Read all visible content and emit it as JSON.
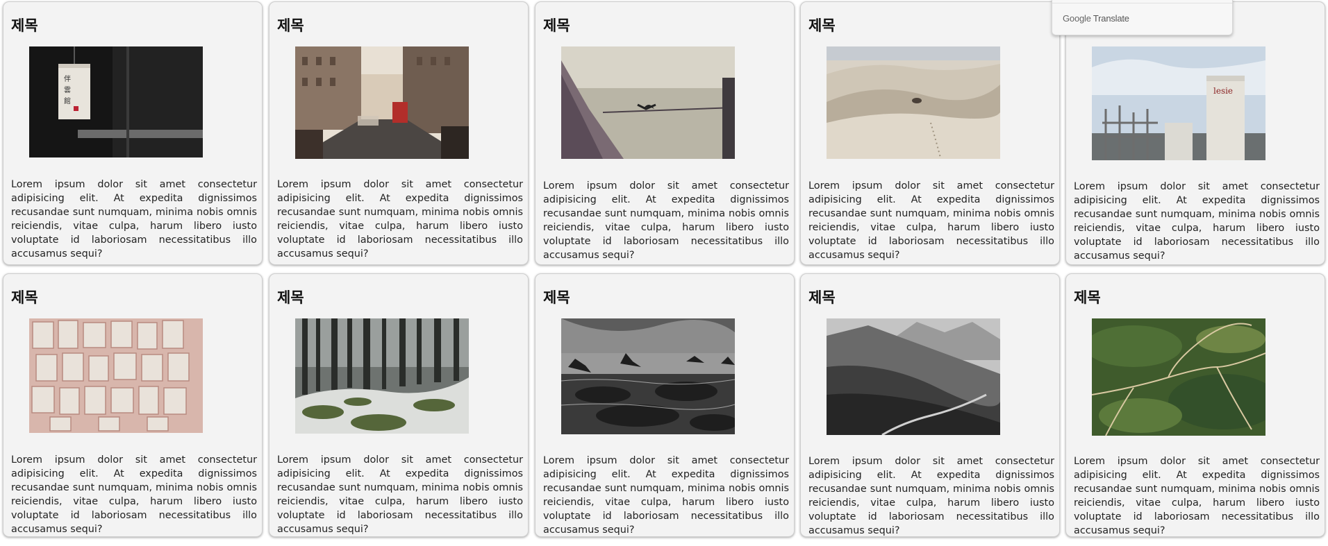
{
  "cards": [
    {
      "title": "제목",
      "image": "paper-lantern-photo",
      "text": "Lorem ipsum dolor sit amet consectetur adipisicing elit. At expedita dignissimos recusandae sunt numquam, minima nobis omnis reiciendis, vitae culpa, harum libero iusto voluptate id laboriosam necessitatibus illo accusamus sequi?"
    },
    {
      "title": "제목",
      "image": "city-street-photo",
      "text": "Lorem ipsum dolor sit amet consectetur adipisicing elit. At expedita dignissimos recusandae sunt numquam, minima nobis omnis reiciendis, vitae culpa, harum libero iusto voluptate id laboriosam necessitatibus illo accusamus sequi?"
    },
    {
      "title": "제목",
      "image": "boat-bird-photo",
      "text": "Lorem ipsum dolor sit amet consectetur adipisicing elit. At expedita dignissimos recusandae sunt numquam, minima nobis omnis reiciendis, vitae culpa, harum libero iusto voluptate id laboriosam necessitatibus illo accusamus sequi?"
    },
    {
      "title": "제목",
      "image": "desert-dunes-photo",
      "text": "Lorem ipsum dolor sit amet consectetur adipisicing elit. At expedita dignissimos recusandae sunt numquam, minima nobis omnis reiciendis, vitae culpa, harum libero iusto voluptate id laboriosam necessitatibus illo accusamus sequi?"
    },
    {
      "title": "제목",
      "image": "factory-tanks-photo",
      "text": "Lorem ipsum dolor sit amet consectetur adipisicing elit. At expedita dignissimos recusandae sunt numquam, minima nobis omnis reiciendis, vitae culpa, harum libero iusto voluptate id laboriosam necessitatibus illo accusamus sequi?"
    },
    {
      "title": "제목",
      "image": "book-pages-photo",
      "text": "Lorem ipsum dolor sit amet consectetur adipisicing elit. At expedita dignissimos recusandae sunt numquam, minima nobis omnis reiciendis, vitae culpa, harum libero iusto voluptate id laboriosam necessitatibus illo accusamus sequi?"
    },
    {
      "title": "제목",
      "image": "snowy-forest-photo",
      "text": "Lorem ipsum dolor sit amet consectetur adipisicing elit. At expedita dignissimos recusandae sunt numquam, minima nobis omnis reiciendis, vitae culpa, harum libero iusto voluptate id laboriosam necessitatibus illo accusamus sequi?"
    },
    {
      "title": "제목",
      "image": "rocky-shore-photo",
      "text": "Lorem ipsum dolor sit amet consectetur adipisicing elit. At expedita dignissimos recusandae sunt numquam, minima nobis omnis reiciendis, vitae culpa, harum libero iusto voluptate id laboriosam necessitatibus illo accusamus sequi?"
    },
    {
      "title": "제목",
      "image": "mountain-road-photo",
      "text": "Lorem ipsum dolor sit amet consectetur adipisicing elit. At expedita dignissimos recusandae sunt numquam, minima nobis omnis reiciendis, vitae culpa, harum libero iusto voluptate id laboriosam necessitatibus illo accusamus sequi?"
    },
    {
      "title": "제목",
      "image": "aerial-valley-photo",
      "text": "Lorem ipsum dolor sit amet consectetur adipisicing elit. At expedita dignissimos recusandae sunt numquam, minima nobis omnis reiciendis, vitae culpa, harum libero iusto voluptate id laboriosam necessitatibus illo accusamus sequi?"
    }
  ],
  "translate_widget": {
    "brand": "Google",
    "label": "Translate"
  },
  "colors": {
    "card_background": "#f3f3f3",
    "card_border": "#cfcfcf",
    "text": "#222222"
  }
}
